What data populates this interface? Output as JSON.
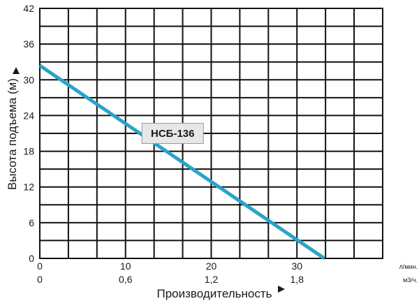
{
  "chart_data": {
    "type": "line",
    "y_axis": {
      "label": "Высота подъема (м)",
      "range": [
        0,
        42
      ],
      "ticks": [
        0,
        6,
        12,
        18,
        24,
        30,
        36,
        42
      ]
    },
    "x_axis_primary": {
      "unit": "л/мин.",
      "range": [
        0,
        40
      ],
      "ticks": [
        {
          "value": 0,
          "label": "0"
        },
        {
          "value": 10,
          "label": "10"
        },
        {
          "value": 20,
          "label": "20"
        },
        {
          "value": 30,
          "label": "30"
        }
      ]
    },
    "x_axis_secondary": {
      "unit": "м3/ч.",
      "ticks": [
        {
          "value": 0,
          "label": "0"
        },
        {
          "value": 10,
          "label": "0,6"
        },
        {
          "value": 20,
          "label": "1,2"
        },
        {
          "value": 30,
          "label": "1,8"
        }
      ]
    },
    "x_axis_title": "Производительность",
    "grid": true,
    "grid_vertical_step": 3.333,
    "grid_horizontal_step": 3,
    "series": [
      {
        "name": "НСБ-136",
        "color": "#2aa3c7",
        "x": [
          0,
          33.2
        ],
        "y": [
          32.4,
          0
        ],
        "label_at": {
          "x": 15.5,
          "y": 21
        }
      }
    ]
  }
}
